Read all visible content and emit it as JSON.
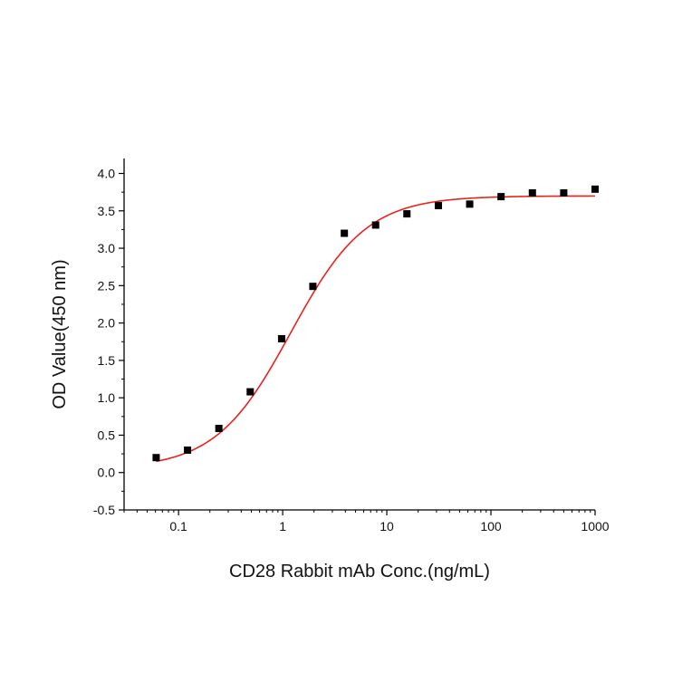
{
  "chart_data": {
    "type": "scatter",
    "title": "",
    "xlabel": "CD28 Rabbit mAb Conc.(ng/mL)",
    "ylabel": "OD Value(450 nm)",
    "xscale": "log",
    "xlim": [
      0.03,
      1000
    ],
    "ylim": [
      -0.5,
      4.2
    ],
    "grid": false,
    "legend": "none",
    "x_tick_labels": [
      "0.1",
      "1",
      "10",
      "100",
      "1000"
    ],
    "x_tick_values": [
      0.1,
      1,
      10,
      100,
      1000
    ],
    "y_tick_labels": [
      "-0.5",
      "0.0",
      "0.5",
      "1.0",
      "1.5",
      "2.0",
      "2.5",
      "3.0",
      "3.5",
      "4.0"
    ],
    "y_tick_values": [
      -0.5,
      0.0,
      0.5,
      1.0,
      1.5,
      2.0,
      2.5,
      3.0,
      3.5,
      4.0
    ],
    "series": [
      {
        "kind": "points",
        "marker": "square",
        "color": "#000000",
        "x": [
          0.061,
          0.122,
          0.244,
          0.488,
          0.977,
          1.95,
          3.91,
          7.81,
          15.6,
          31.3,
          62.5,
          125,
          250,
          500,
          1000
        ],
        "y": [
          0.2,
          0.3,
          0.59,
          1.08,
          1.79,
          2.49,
          3.2,
          3.31,
          3.46,
          3.57,
          3.59,
          3.69,
          3.74,
          3.74,
          3.79
        ]
      },
      {
        "kind": "fit-curve",
        "color": "#e8231f",
        "model": "4PL",
        "bottom": 0.05,
        "top": 3.7,
        "ec50": 1.2,
        "hill": 1.2,
        "x_range": [
          0.061,
          1000
        ]
      }
    ]
  }
}
